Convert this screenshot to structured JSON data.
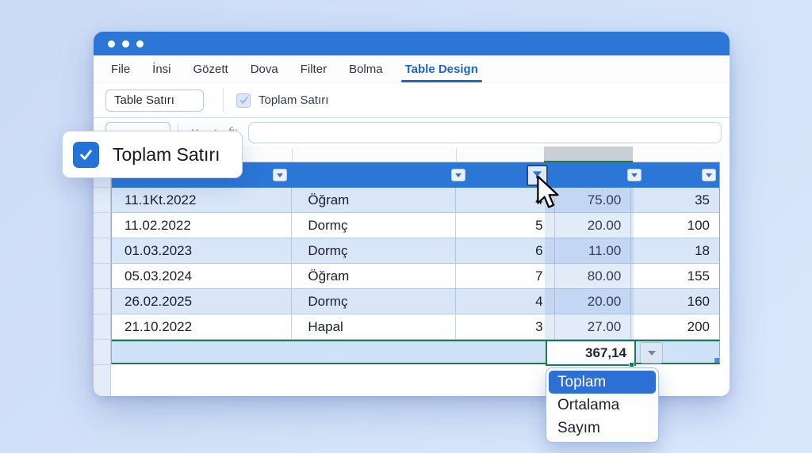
{
  "window": {
    "traffic_dots": 3
  },
  "menu": {
    "items": [
      {
        "label": "File",
        "active": false
      },
      {
        "label": "İnsi",
        "active": false
      },
      {
        "label": "Gözett",
        "active": false
      },
      {
        "label": "Dova",
        "active": false
      },
      {
        "label": "Filter",
        "active": false
      },
      {
        "label": "Bolma",
        "active": false
      },
      {
        "label": "Table Design",
        "active": true
      }
    ]
  },
  "ribbon": {
    "table_name_value": "Table Satırı",
    "total_row_checkbox_label": "Toplam Satırı",
    "total_row_checked": true
  },
  "formula_bar": {
    "name_box_value": "",
    "cancel_icon": "✕",
    "confirm_icon": "✓",
    "function_icon": "fx",
    "formula_value": ""
  },
  "popup": {
    "label": "Toplam Satırı",
    "checked": true
  },
  "table": {
    "column_count": 5,
    "filtered_column_index": 3,
    "rows": [
      {
        "cells": [
          "11.1Kt.2022",
          "Öğram",
          "4",
          "75.00",
          "35"
        ]
      },
      {
        "cells": [
          "11.02.2022",
          "Dormç",
          "5",
          "20.00",
          "100"
        ]
      },
      {
        "cells": [
          "01.03.2023",
          "Dormç",
          "6",
          "11.00",
          "18"
        ]
      },
      {
        "cells": [
          "05.03.2024",
          "Öğram",
          "7",
          "80.00",
          "155"
        ]
      },
      {
        "cells": [
          "26.02.2025",
          "Dormç",
          "4",
          "20.00",
          "160"
        ]
      },
      {
        "cells": [
          "21.10.2022",
          "Hapal",
          "3",
          "27.00",
          "200"
        ]
      }
    ],
    "total_row": {
      "value": "367,14"
    }
  },
  "total_dropdown": {
    "items": [
      {
        "label": "Toplam",
        "selected": true
      },
      {
        "label": "Ortalama",
        "selected": false
      },
      {
        "label": "Sayım",
        "selected": false
      }
    ]
  },
  "colors": {
    "accent_blue": "#2b76d6",
    "active_tab_blue": "#1a66c9",
    "selection_green": "#1e7a4e",
    "row_alt_blue": "#d9e6f8",
    "total_row_bg": "#cfe2f7",
    "dropdown_selected_blue": "#2e6fd6"
  }
}
